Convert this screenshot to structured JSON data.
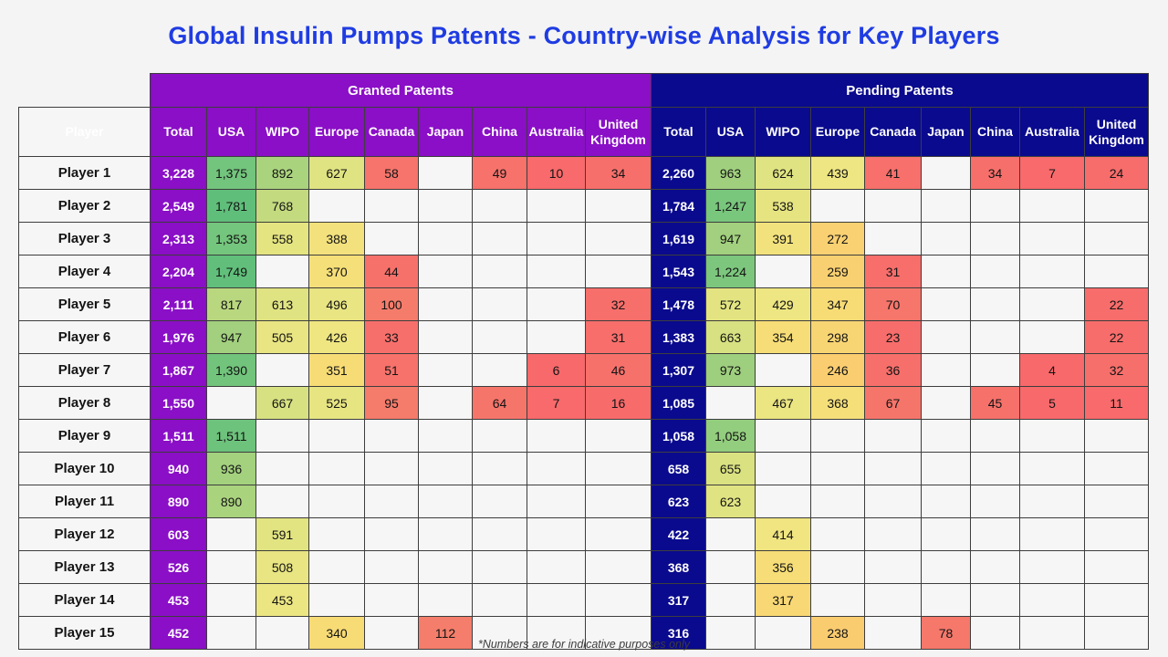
{
  "title": "Global Insulin Pumps Patents - Country-wise Analysis for Key Players",
  "footnote": "*Numbers are for indicative purposes only",
  "colors": {
    "title_blue": "#1f3ce2",
    "granted_purple": "#8a0fc6",
    "pending_navy": "#0a0a8e",
    "border": "#3d3d3d",
    "blank_cell": "#f6f6f6"
  },
  "heat_scale": [
    [
      4,
      "#F8696B"
    ],
    [
      120,
      "#F4806B"
    ],
    [
      240,
      "#FACD70"
    ],
    [
      350,
      "#F7DC76"
    ],
    [
      420,
      "#EFE682"
    ],
    [
      630,
      "#DFE381"
    ],
    [
      900,
      "#A8D27E"
    ],
    [
      1250,
      "#79C67D"
    ],
    [
      1800,
      "#5FBE7B"
    ]
  ],
  "table": {
    "player_header": "Player",
    "groups": [
      {
        "label": "Granted Patents"
      },
      {
        "label": "Pending Patents"
      }
    ],
    "columns": [
      "Total",
      "USA",
      "WIPO",
      "Europe",
      "Canada",
      "Japan",
      "China",
      "Australia",
      "United Kingdom"
    ],
    "rows": [
      {
        "player": "Player 1",
        "granted": [
          "3,228",
          "1,375",
          "892",
          "627",
          "58",
          "",
          "49",
          "10",
          "34"
        ],
        "pending": [
          "2,260",
          "963",
          "624",
          "439",
          "41",
          "",
          "34",
          "7",
          "24"
        ]
      },
      {
        "player": "Player 2",
        "granted": [
          "2,549",
          "1,781",
          "768",
          "",
          "",
          "",
          "",
          "",
          ""
        ],
        "pending": [
          "1,784",
          "1,247",
          "538",
          "",
          "",
          "",
          "",
          "",
          ""
        ]
      },
      {
        "player": "Player 3",
        "granted": [
          "2,313",
          "1,353",
          "558",
          "388",
          "",
          "",
          "",
          "",
          ""
        ],
        "pending": [
          "1,619",
          "947",
          "391",
          "272",
          "",
          "",
          "",
          "",
          ""
        ]
      },
      {
        "player": "Player 4",
        "granted": [
          "2,204",
          "1,749",
          "",
          "370",
          "44",
          "",
          "",
          "",
          ""
        ],
        "pending": [
          "1,543",
          "1,224",
          "",
          "259",
          "31",
          "",
          "",
          "",
          ""
        ]
      },
      {
        "player": "Player 5",
        "granted": [
          "2,111",
          "817",
          "613",
          "496",
          "100",
          "",
          "",
          "",
          "32"
        ],
        "pending": [
          "1,478",
          "572",
          "429",
          "347",
          "70",
          "",
          "",
          "",
          "22"
        ]
      },
      {
        "player": "Player 6",
        "granted": [
          "1,976",
          "947",
          "505",
          "426",
          "33",
          "",
          "",
          "",
          "31"
        ],
        "pending": [
          "1,383",
          "663",
          "354",
          "298",
          "23",
          "",
          "",
          "",
          "22"
        ]
      },
      {
        "player": "Player 7",
        "granted": [
          "1,867",
          "1,390",
          "",
          "351",
          "51",
          "",
          "",
          "6",
          "46"
        ],
        "pending": [
          "1,307",
          "973",
          "",
          "246",
          "36",
          "",
          "",
          "4",
          "32"
        ]
      },
      {
        "player": "Player 8",
        "granted": [
          "1,550",
          "",
          "667",
          "525",
          "95",
          "",
          "64",
          "7",
          "16"
        ],
        "pending": [
          "1,085",
          "",
          "467",
          "368",
          "67",
          "",
          "45",
          "5",
          "11"
        ]
      },
      {
        "player": "Player 9",
        "granted": [
          "1,511",
          "1,511",
          "",
          "",
          "",
          "",
          "",
          "",
          ""
        ],
        "pending": [
          "1,058",
          "1,058",
          "",
          "",
          "",
          "",
          "",
          "",
          ""
        ]
      },
      {
        "player": "Player 10",
        "granted": [
          "940",
          "936",
          "",
          "",
          "",
          "",
          "",
          "",
          ""
        ],
        "pending": [
          "658",
          "655",
          "",
          "",
          "",
          "",
          "",
          "",
          ""
        ]
      },
      {
        "player": "Player 11",
        "granted": [
          "890",
          "890",
          "",
          "",
          "",
          "",
          "",
          "",
          ""
        ],
        "pending": [
          "623",
          "623",
          "",
          "",
          "",
          "",
          "",
          "",
          ""
        ]
      },
      {
        "player": "Player 12",
        "granted": [
          "603",
          "",
          "591",
          "",
          "",
          "",
          "",
          "",
          ""
        ],
        "pending": [
          "422",
          "",
          "414",
          "",
          "",
          "",
          "",
          "",
          ""
        ]
      },
      {
        "player": "Player 13",
        "granted": [
          "526",
          "",
          "508",
          "",
          "",
          "",
          "",
          "",
          ""
        ],
        "pending": [
          "368",
          "",
          "356",
          "",
          "",
          "",
          "",
          "",
          ""
        ]
      },
      {
        "player": "Player 14",
        "granted": [
          "453",
          "",
          "453",
          "",
          "",
          "",
          "",
          "",
          ""
        ],
        "pending": [
          "317",
          "",
          "317",
          "",
          "",
          "",
          "",
          "",
          ""
        ]
      },
      {
        "player": "Player 15",
        "granted": [
          "452",
          "",
          "",
          "340",
          "",
          "112",
          "",
          "",
          ""
        ],
        "pending": [
          "316",
          "",
          "",
          "238",
          "",
          "78",
          "",
          "",
          ""
        ]
      }
    ]
  }
}
